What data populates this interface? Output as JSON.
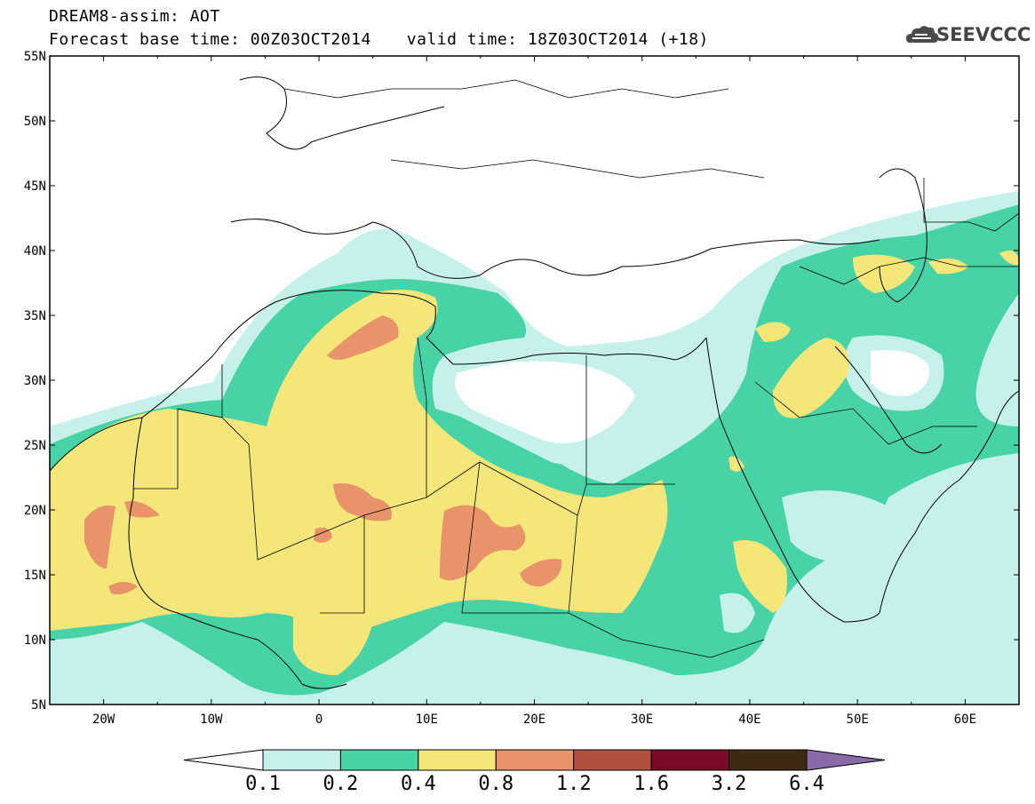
{
  "header": {
    "line1": "DREAM8-assim: AOT",
    "base_time": "Forecast base time: 00Z03OCT2014",
    "valid_time": "valid time: 18Z03OCT2014 (+18)"
  },
  "logo": {
    "text": "SEEVCCC",
    "icon": "cloud-icon"
  },
  "map": {
    "lat_labels": [
      "55N",
      "50N",
      "45N",
      "40N",
      "35N",
      "30N",
      "25N",
      "20N",
      "15N",
      "10N",
      "5N"
    ],
    "lon_labels": [
      "20W",
      "10W",
      "0",
      "10E",
      "20E",
      "30E",
      "40E",
      "50E",
      "60E"
    ],
    "lat_range": [
      5,
      55
    ],
    "lon_range": [
      -25,
      65
    ],
    "projection": "lat-lon (cylindrical)",
    "variable": "AOT"
  },
  "colorbar": {
    "levels": [
      "0.1",
      "0.2",
      "0.4",
      "0.8",
      "1.2",
      "1.6",
      "3.2",
      "6.4"
    ],
    "colors": [
      "#ffffff",
      "#c6f0ea",
      "#47d3a6",
      "#f5e67a",
      "#e8936a",
      "#b0503e",
      "#7a0b26",
      "#3e2a12",
      "#8a6aa8"
    ],
    "extend": "both"
  }
}
